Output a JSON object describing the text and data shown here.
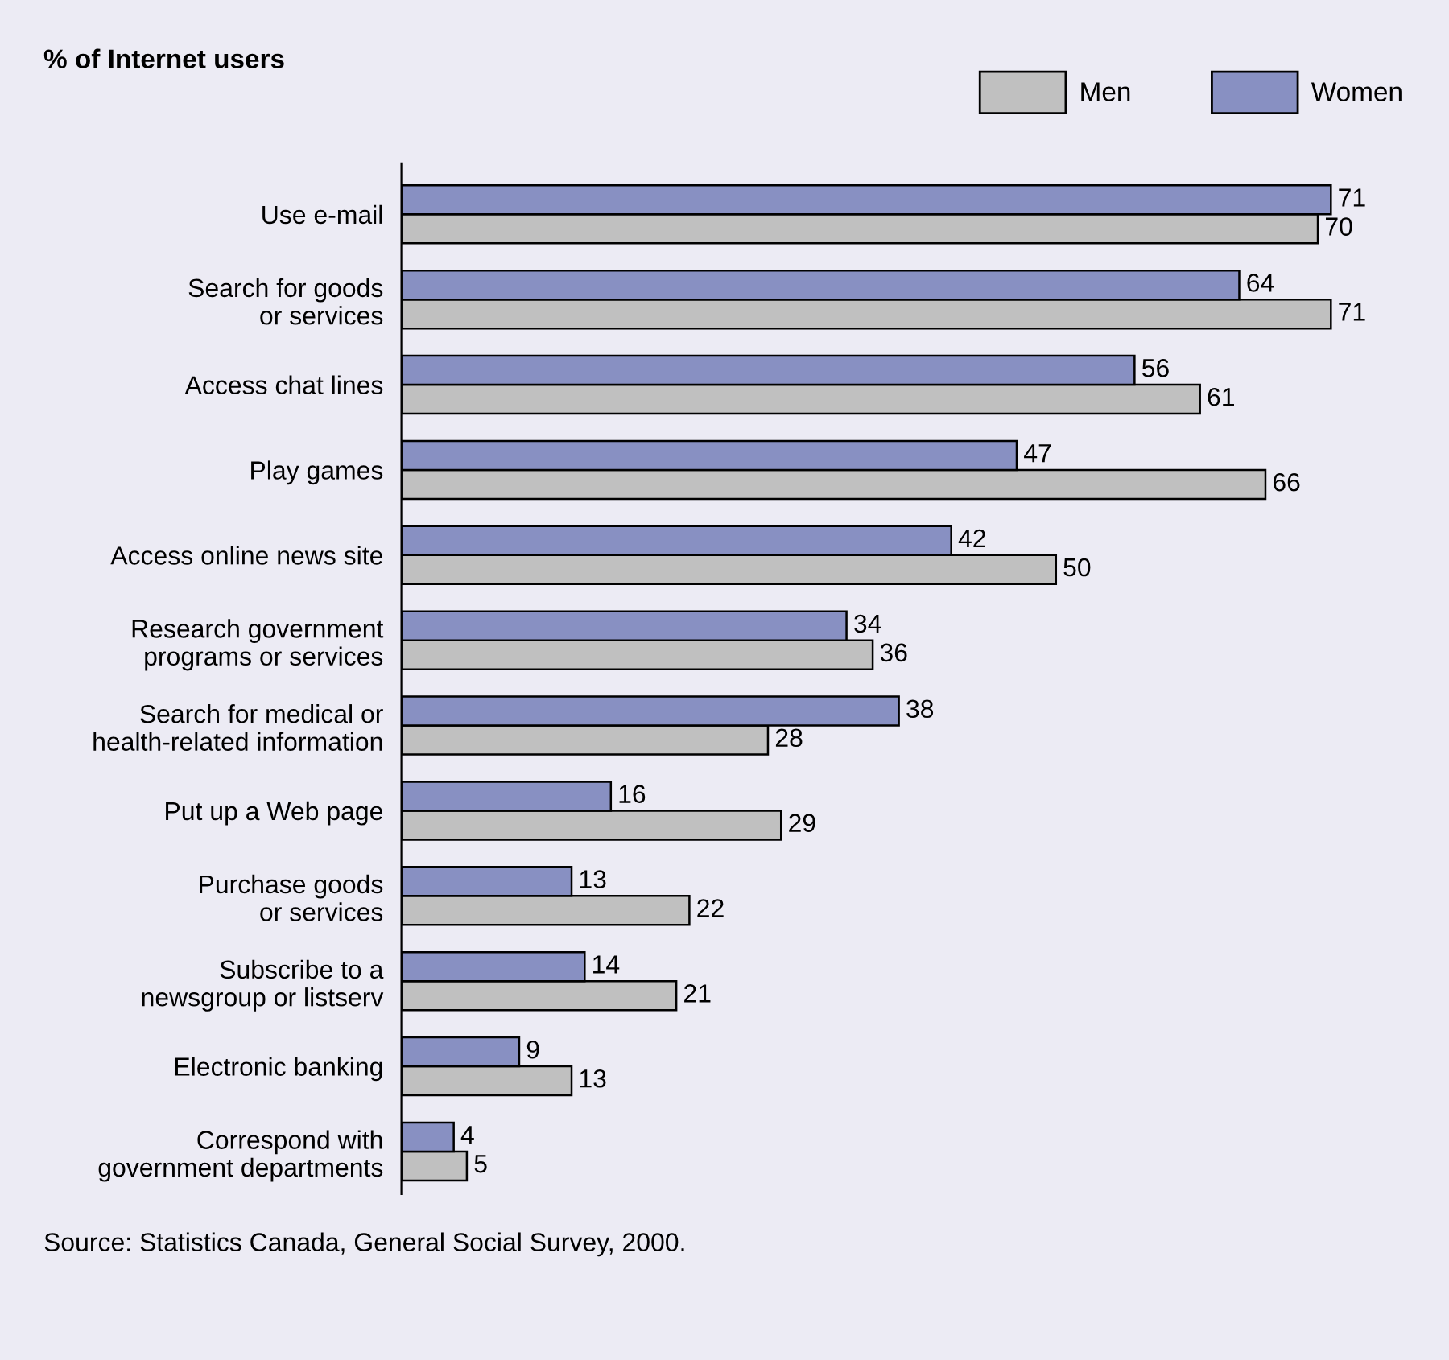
{
  "chart_data": {
    "type": "bar",
    "orientation": "horizontal",
    "title": "% of Internet users",
    "categories": [
      "Use e-mail",
      "Search for goods\nor services",
      "Access chat lines",
      "Play games",
      "Access online news site",
      "Research government\nprograms or services",
      "Search for medical or\nhealth-related information",
      "Put up a Web page",
      "Purchase goods\nor services",
      "Subscribe to a\nnewsgroup or listserv",
      "Electronic banking",
      "Correspond with\ngovernment departments"
    ],
    "series": [
      {
        "name": "Men",
        "color": "#c0c0c0",
        "values": [
          70,
          71,
          61,
          66,
          50,
          36,
          28,
          29,
          22,
          21,
          13,
          5
        ]
      },
      {
        "name": "Women",
        "color": "#8890c2",
        "values": [
          71,
          64,
          56,
          47,
          42,
          34,
          38,
          16,
          13,
          14,
          9,
          4
        ]
      }
    ],
    "data_labels": true,
    "legend": "top right",
    "grid": false,
    "tick_labels": "y",
    "annotations": [
      "Source: Statistics Canada, General Social Survey, 2000."
    ]
  }
}
